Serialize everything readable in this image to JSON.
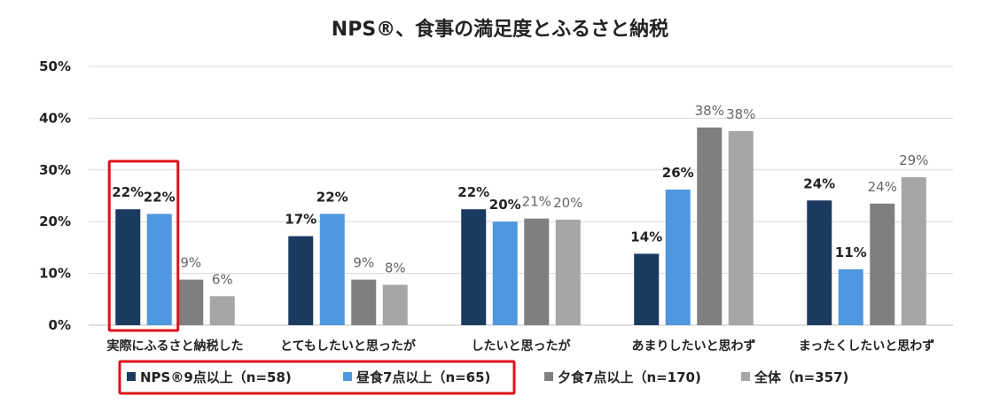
{
  "chart_data": {
    "type": "bar",
    "title": "NPS®、食事の満足度とふるさと納税",
    "xlabel": "",
    "ylabel": "",
    "ylim": [
      0,
      50
    ],
    "yticks": [
      "0%",
      "10%",
      "20%",
      "30%",
      "40%",
      "50%"
    ],
    "grid": true,
    "legend_position": "bottom",
    "categories": [
      "実際にふるさと納税した",
      "とてもしたいと思ったが",
      "したいと思ったが",
      "あまりしたいと思わず",
      "まったくしたいと思わず"
    ],
    "series": [
      {
        "name": "NPS®9点以上（n=58)",
        "color": "#1b3a60",
        "values": [
          22.4,
          17.2,
          22.4,
          13.8,
          24.1
        ],
        "labels": [
          "22%",
          "17%",
          "22%",
          "14%",
          "24%"
        ]
      },
      {
        "name": "昼食7点以上（n=65)",
        "color": "#4f97de",
        "values": [
          21.5,
          21.5,
          20.0,
          26.2,
          10.8
        ],
        "labels": [
          "22%",
          "22%",
          "20%",
          "26%",
          "11%"
        ]
      },
      {
        "name": "夕食7点以上（n=170)",
        "color": "#7f7f7f",
        "values": [
          8.8,
          8.8,
          20.6,
          38.2,
          23.5
        ],
        "labels": [
          "9%",
          "9%",
          "21%",
          "38%",
          "24%"
        ]
      },
      {
        "name": "全体（n=357)",
        "color": "#a6a6a6",
        "values": [
          5.6,
          7.8,
          20.4,
          37.5,
          28.6
        ],
        "labels": [
          "6%",
          "8%",
          "20%",
          "38%",
          "29%"
        ]
      }
    ],
    "highlight_color": "#e0101c"
  }
}
